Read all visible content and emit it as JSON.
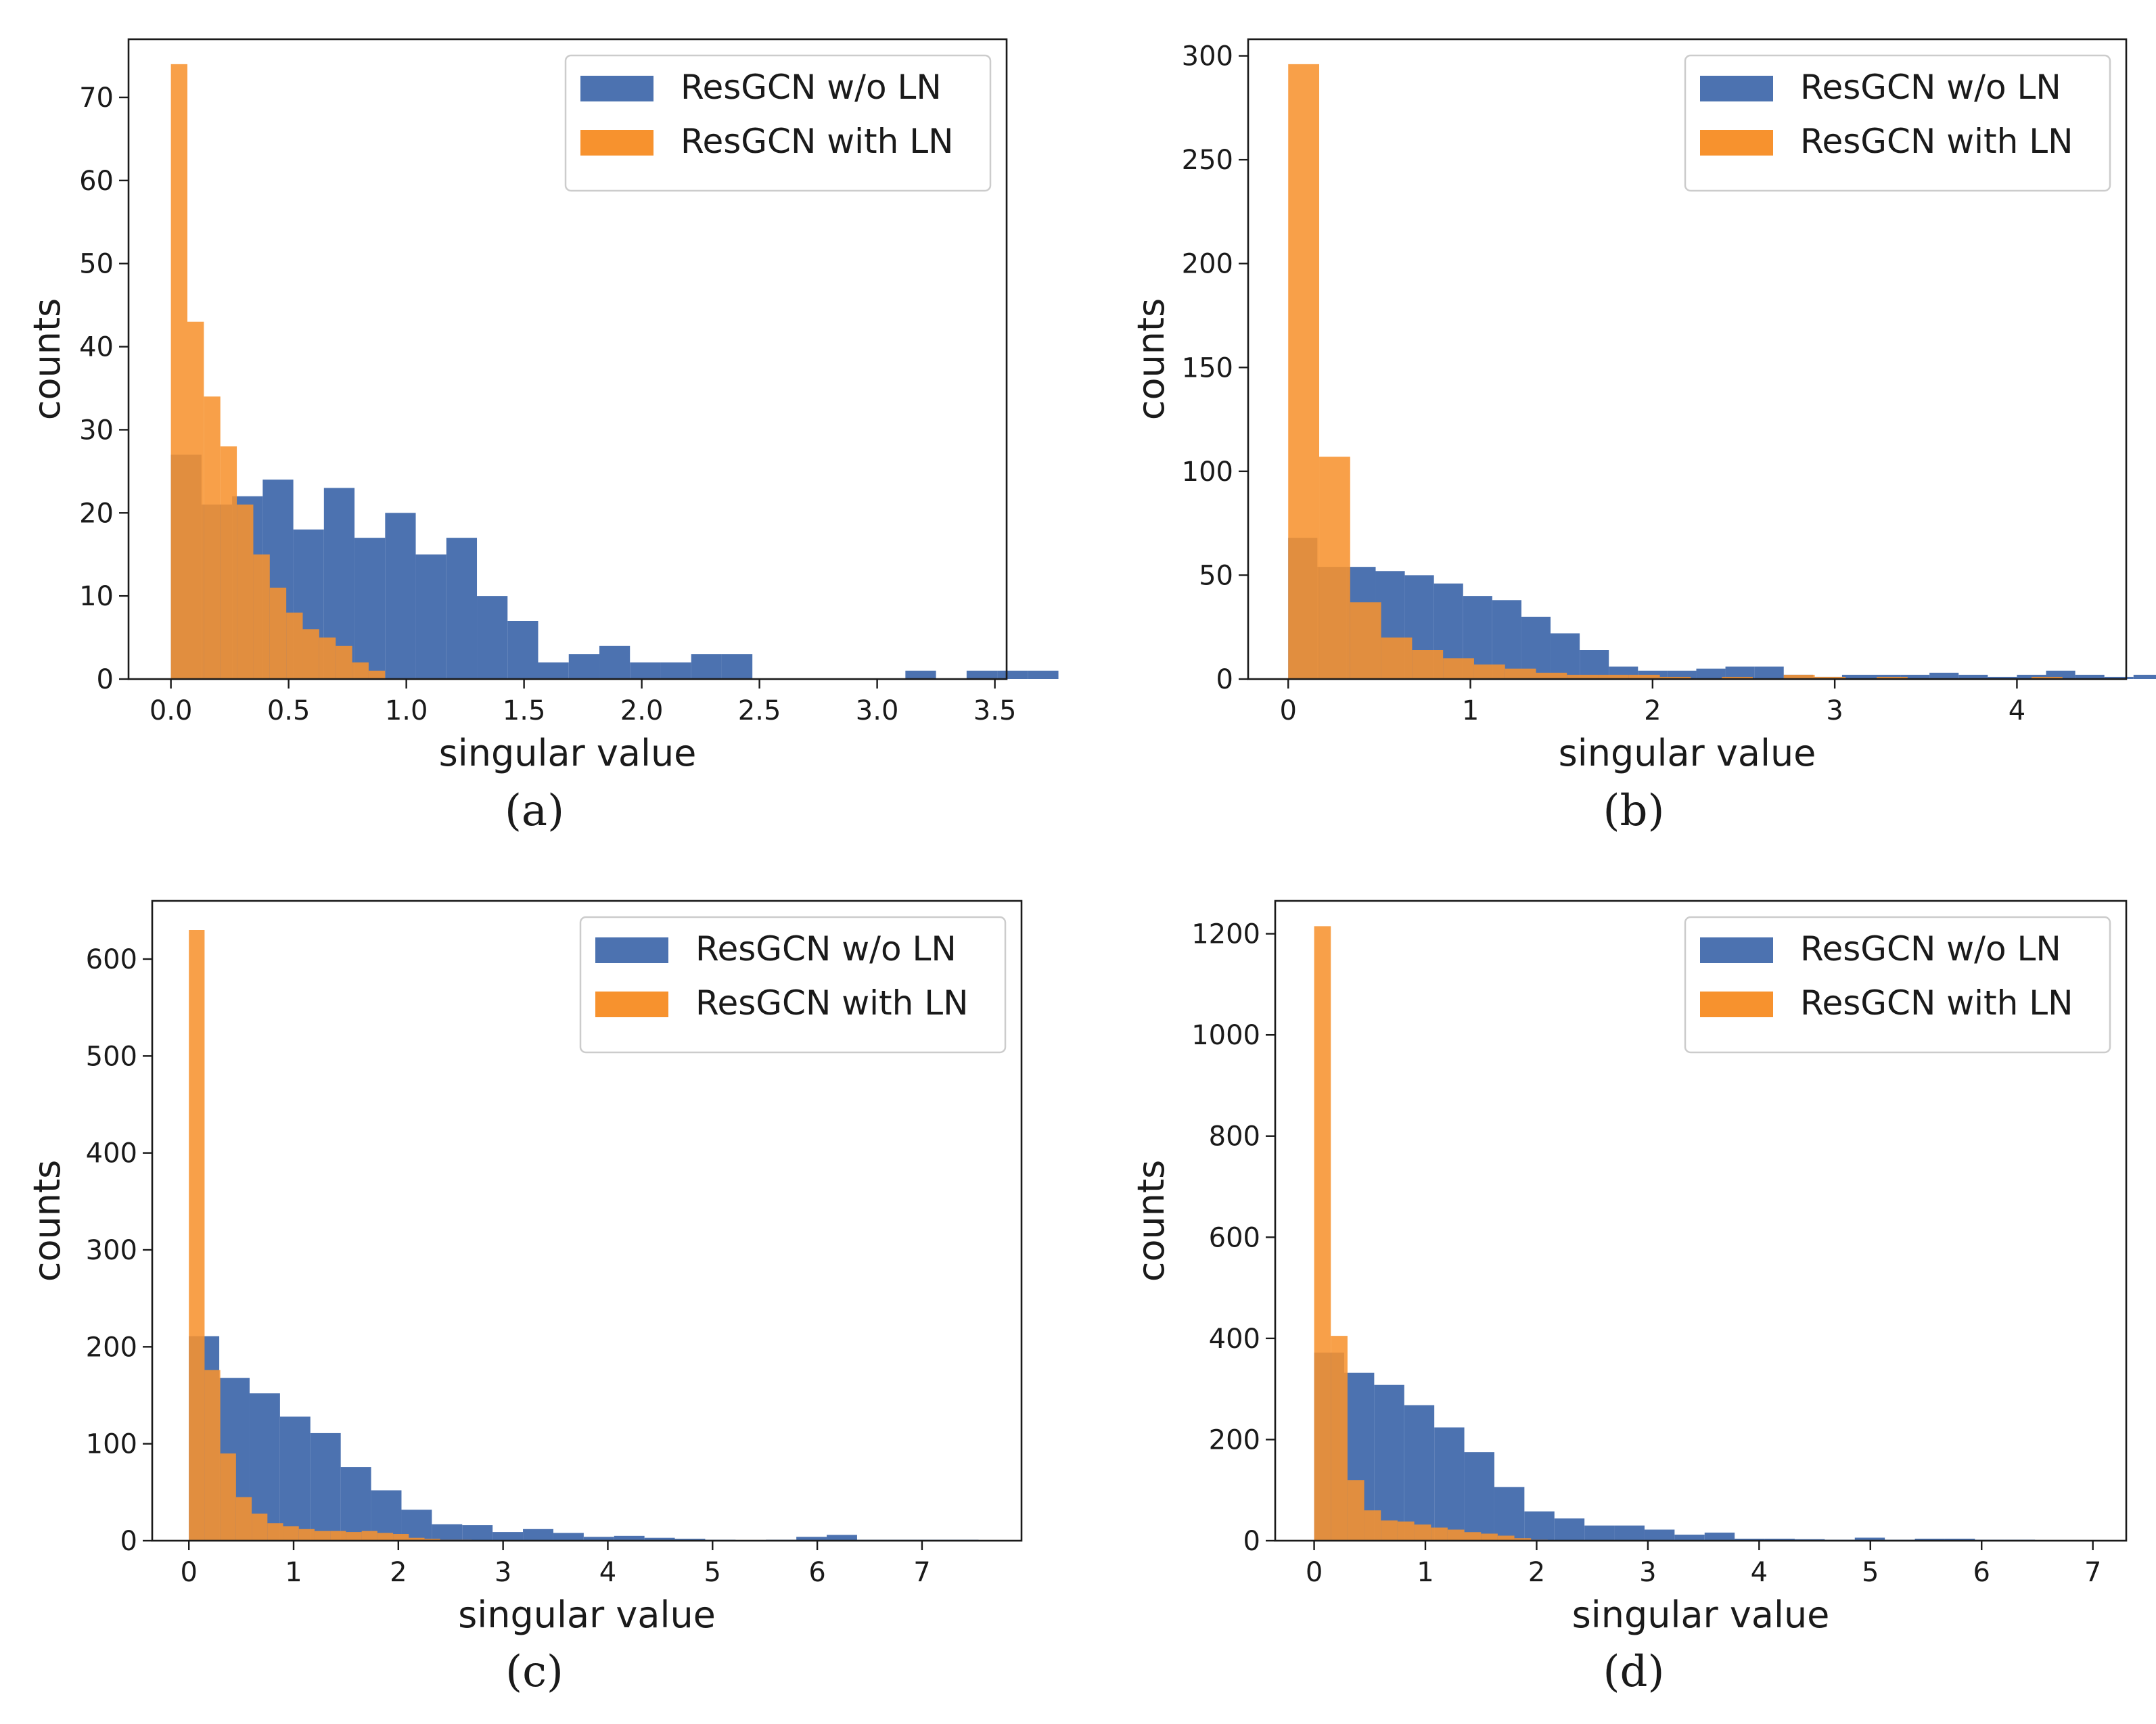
{
  "chart_data": [
    {
      "type": "bar",
      "caption": "(a)",
      "xlabel": "singular value",
      "ylabel": "counts",
      "xlim": [
        -0.18,
        3.55
      ],
      "ylim": [
        0,
        77
      ],
      "xticks": [
        0,
        0.5,
        1,
        1.5,
        2,
        2.5,
        3,
        3.5
      ],
      "xtick_labels": [
        "0.0",
        "0.5",
        "1.0",
        "1.5",
        "2.0",
        "2.5",
        "3.0",
        "3.5"
      ],
      "yticks": [
        0,
        10,
        20,
        30,
        40,
        50,
        60,
        70
      ],
      "ytick_labels": [
        "0",
        "10",
        "20",
        "30",
        "40",
        "50",
        "60",
        "70"
      ],
      "legend_position": "top-right",
      "grid": false,
      "colors": {
        "ResGCN w/o LN": "#4c72b0",
        "ResGCN with LN": "#f7922e"
      },
      "series": [
        {
          "name": "ResGCN w/o LN",
          "bin_start": 0,
          "bin_width": 0.13,
          "counts": [
            27,
            21,
            22,
            24,
            18,
            23,
            17,
            20,
            15,
            17,
            10,
            7,
            2,
            3,
            4,
            2,
            2,
            3,
            3,
            0,
            0,
            0,
            0,
            0,
            1,
            0,
            1,
            1,
            1
          ]
        },
        {
          "name": "ResGCN with LN",
          "bin_start": 0,
          "bin_width": 0.07,
          "counts": [
            74,
            43,
            34,
            28,
            21,
            15,
            11,
            8,
            6,
            5,
            4,
            2,
            1
          ]
        }
      ]
    },
    {
      "type": "bar",
      "caption": "(b)",
      "xlabel": "singular value",
      "ylabel": "counts",
      "xlim": [
        -0.22,
        4.6
      ],
      "ylim": [
        0,
        308
      ],
      "xticks": [
        0,
        1,
        2,
        3,
        4
      ],
      "xtick_labels": [
        "0",
        "1",
        "2",
        "3",
        "4"
      ],
      "yticks": [
        0,
        50,
        100,
        150,
        200,
        250,
        300
      ],
      "ytick_labels": [
        "0",
        "50",
        "100",
        "150",
        "200",
        "250",
        "300"
      ],
      "legend_position": "top-right",
      "grid": false,
      "colors": {
        "ResGCN w/o LN": "#4c72b0",
        "ResGCN with LN": "#f7922e"
      },
      "series": [
        {
          "name": "ResGCN w/o LN",
          "bin_start": 0,
          "bin_width": 0.16,
          "counts": [
            68,
            54,
            54,
            52,
            50,
            46,
            40,
            38,
            30,
            22,
            14,
            6,
            4,
            4,
            5,
            6,
            6,
            2,
            1,
            2,
            2,
            2,
            3,
            2,
            1,
            2,
            4,
            2,
            1,
            2
          ]
        },
        {
          "name": "ResGCN with LN",
          "bin_start": 0,
          "bin_width": 0.17,
          "counts": [
            296,
            107,
            37,
            20,
            14,
            10,
            7,
            5,
            3,
            2,
            2,
            2,
            1,
            0,
            1,
            0,
            2,
            1,
            0,
            1,
            0,
            0,
            0,
            0,
            1,
            0
          ]
        }
      ]
    },
    {
      "type": "bar",
      "caption": "(c)",
      "xlabel": "singular value",
      "ylabel": "counts",
      "xlim": [
        -0.35,
        7.95
      ],
      "ylim": [
        0,
        660
      ],
      "xticks": [
        0,
        1,
        2,
        3,
        4,
        5,
        6,
        7
      ],
      "xtick_labels": [
        "0",
        "1",
        "2",
        "3",
        "4",
        "5",
        "6",
        "7"
      ],
      "yticks": [
        0,
        100,
        200,
        300,
        400,
        500,
        600
      ],
      "ytick_labels": [
        "0",
        "100",
        "200",
        "300",
        "400",
        "500",
        "600"
      ],
      "legend_position": "top-right",
      "grid": false,
      "colors": {
        "ResGCN w/o LN": "#4c72b0",
        "ResGCN with LN": "#f7922e"
      },
      "series": [
        {
          "name": "ResGCN w/o LN",
          "bin_start": 0,
          "bin_width": 0.29,
          "counts": [
            211,
            168,
            152,
            128,
            111,
            76,
            52,
            32,
            17,
            16,
            9,
            12,
            8,
            4,
            5,
            3,
            2,
            1,
            0,
            1,
            4,
            6,
            1,
            1,
            1,
            1
          ]
        },
        {
          "name": "ResGCN with LN",
          "bin_start": 0,
          "bin_width": 0.15,
          "counts": [
            630,
            176,
            90,
            45,
            28,
            18,
            15,
            12,
            10,
            10,
            9,
            10,
            8,
            7,
            3,
            2,
            1,
            1
          ]
        }
      ]
    },
    {
      "type": "bar",
      "caption": "(d)",
      "xlabel": "singular value",
      "ylabel": "counts",
      "xlim": [
        -0.35,
        7.3
      ],
      "ylim": [
        0,
        1265
      ],
      "xticks": [
        0,
        1,
        2,
        3,
        4,
        5,
        6,
        7
      ],
      "xtick_labels": [
        "0",
        "1",
        "2",
        "3",
        "4",
        "5",
        "6",
        "7"
      ],
      "yticks": [
        0,
        200,
        400,
        600,
        800,
        1000,
        1200
      ],
      "ytick_labels": [
        "0",
        "200",
        "400",
        "600",
        "800",
        "1000",
        "1200"
      ],
      "legend_position": "top-right",
      "grid": false,
      "colors": {
        "ResGCN w/o LN": "#4c72b0",
        "ResGCN with LN": "#f7922e"
      },
      "series": [
        {
          "name": "ResGCN w/o LN",
          "bin_start": 0,
          "bin_width": 0.27,
          "counts": [
            372,
            332,
            308,
            268,
            224,
            175,
            106,
            58,
            44,
            30,
            30,
            22,
            12,
            16,
            4,
            4,
            3,
            2,
            6,
            2,
            4,
            4,
            2,
            2,
            1,
            1
          ]
        },
        {
          "name": "ResGCN with LN",
          "bin_start": 0,
          "bin_width": 0.15,
          "counts": [
            1215,
            405,
            120,
            60,
            40,
            38,
            32,
            26,
            22,
            17,
            14,
            10,
            5,
            2,
            1
          ]
        }
      ]
    }
  ]
}
